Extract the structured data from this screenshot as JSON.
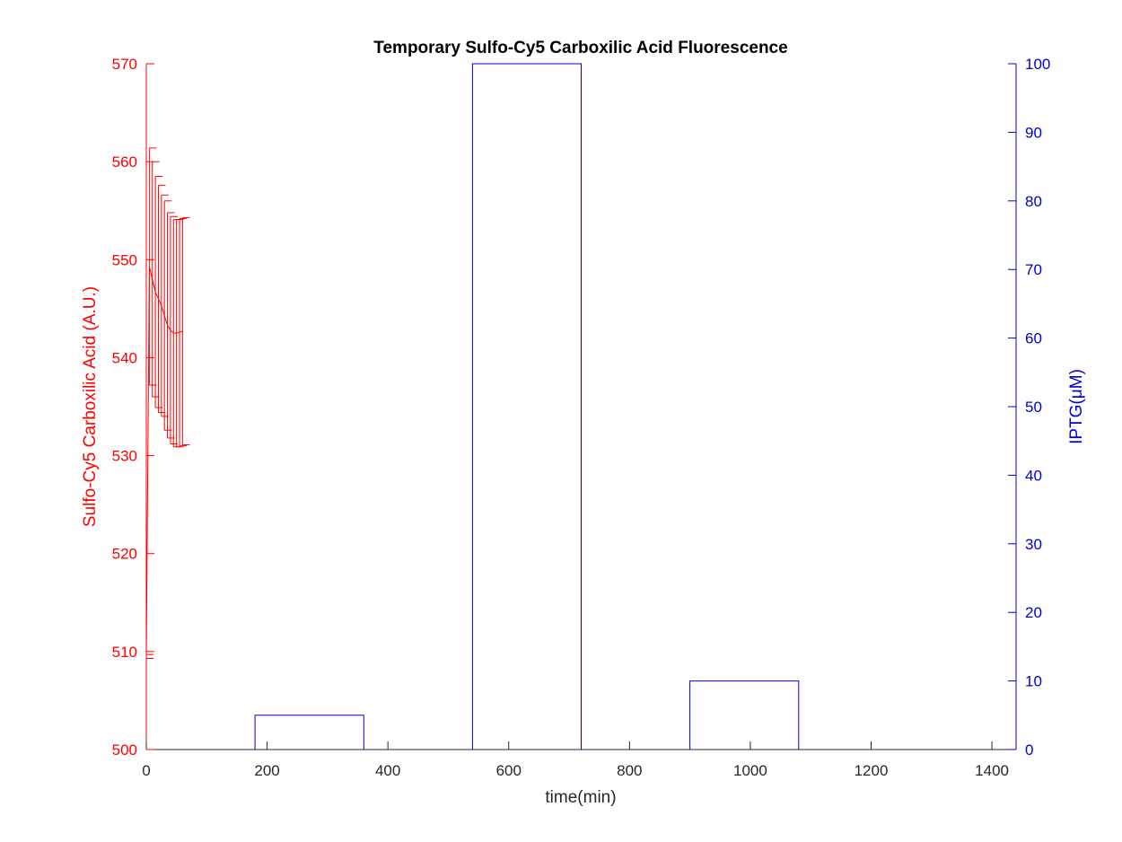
{
  "chart_data": {
    "type": "line",
    "title": "Temporary Sulfo-Cy5 Carboxilic Acid Fluorescence",
    "xlabel": "time(min)",
    "ylabel_left": "Sulfo-Cy5 Carboxilic Acid (A.U.)",
    "ylabel_right": "IPTG(μM)",
    "xlim": [
      0,
      1440
    ],
    "ylim_left": [
      500,
      570
    ],
    "ylim_right": [
      0,
      100
    ],
    "x_ticks": [
      0,
      200,
      400,
      600,
      800,
      1000,
      1200,
      1400
    ],
    "y_left_ticks": [
      500,
      510,
      520,
      530,
      540,
      550,
      560,
      570
    ],
    "y_right_ticks": [
      0,
      10,
      20,
      30,
      40,
      50,
      60,
      70,
      80,
      90,
      100
    ],
    "colors": {
      "left": "#ff0000",
      "right": "#0000cc",
      "title": "#000000",
      "xaxis": "#262626"
    },
    "series": [
      {
        "axis": "left",
        "kind": "errorbar",
        "color": "#ff0000",
        "x": [
          0,
          5,
          10,
          15,
          20,
          25,
          30,
          35,
          40,
          45,
          50,
          55,
          60
        ],
        "y": [
          509.5,
          549.3,
          548.0,
          546.7,
          546.0,
          545.3,
          544.3,
          543.3,
          542.8,
          542.5,
          542.5,
          542.6,
          542.7
        ],
        "err": [
          0.2,
          12.1,
          12.0,
          11.8,
          11.6,
          11.3,
          11.7,
          11.5,
          11.6,
          11.6,
          11.6,
          11.6,
          11.6
        ]
      },
      {
        "axis": "right",
        "kind": "step",
        "color": "#0000cc",
        "x": [
          0,
          180,
          180,
          360,
          360,
          540,
          540,
          720,
          720,
          900,
          900,
          1080,
          1080,
          1440
        ],
        "y": [
          0,
          0,
          5,
          5,
          0,
          0,
          100,
          100,
          0,
          0,
          10,
          10,
          0,
          0
        ]
      }
    ]
  }
}
